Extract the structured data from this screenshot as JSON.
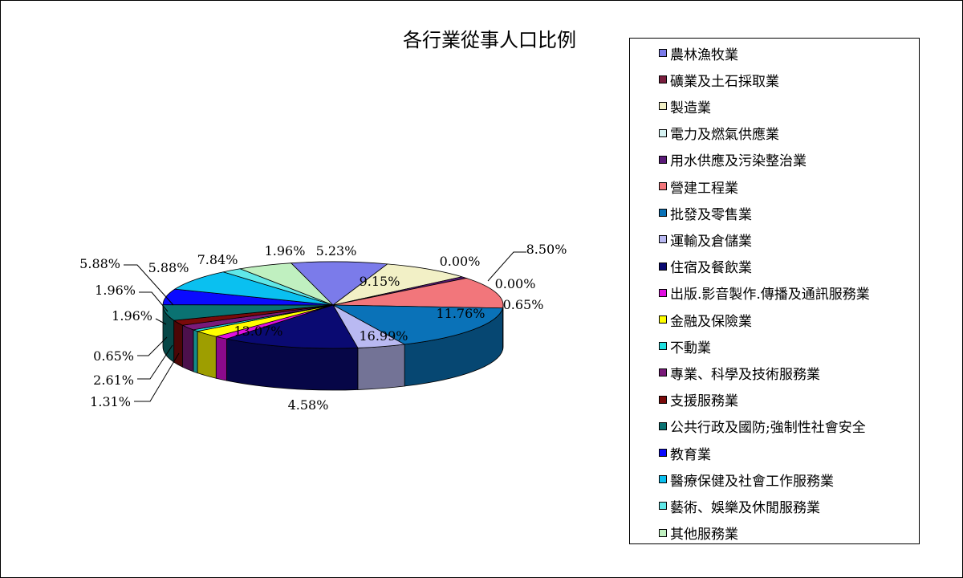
{
  "chart_data": {
    "type": "pie",
    "title": "各行業從事人口比例",
    "legend_position": "right",
    "categories": [
      "農林漁牧業",
      "礦業及土石採取業",
      "製造業",
      "電力及燃氣供應業",
      "用水供應及污染整治業",
      "營建工程業",
      "批發及零售業",
      "運輸及倉儲業",
      "住宿及餐飲業",
      "出版.影音製作.傳播及通訊服務業",
      "金融及保險業",
      "不動業",
      "專業、科學及技術服務業",
      "支援服務業",
      "公共行政及國防;強制性社會安全",
      "教育業",
      "醫療保健及社會工作服務業",
      "藝術、娛樂及休閒服務業",
      "其他服務業"
    ],
    "values": [
      9.15,
      0.0,
      8.5,
      0.0,
      0.65,
      11.76,
      16.99,
      4.58,
      13.07,
      1.31,
      2.61,
      0.65,
      1.96,
      1.96,
      5.88,
      5.88,
      7.84,
      1.96,
      5.23
    ],
    "value_labels": [
      "9.15%",
      "0.00%",
      "8.50%",
      "0.00%",
      "0.65%",
      "11.76%",
      "16.99%",
      "4.58%",
      "13.07%",
      "1.31%",
      "2.61%",
      "0.65%",
      "1.96%",
      "1.96%",
      "5.88%",
      "5.88%",
      "7.84%",
      "1.96%",
      "5.23%"
    ],
    "colors": [
      "#7B7BEA",
      "#7A1E3E",
      "#F2F0C6",
      "#D5F2F2",
      "#5A1A78",
      "#F2767B",
      "#0A72B8",
      "#B9B9F2",
      "#0A0A72",
      "#E010E0",
      "#FFFF00",
      "#20E0E0",
      "#7A1A7A",
      "#7A0A0A",
      "#0A7272",
      "#0A0AFF",
      "#0AC0F0",
      "#60E8E8",
      "#C0F0C0"
    ]
  }
}
